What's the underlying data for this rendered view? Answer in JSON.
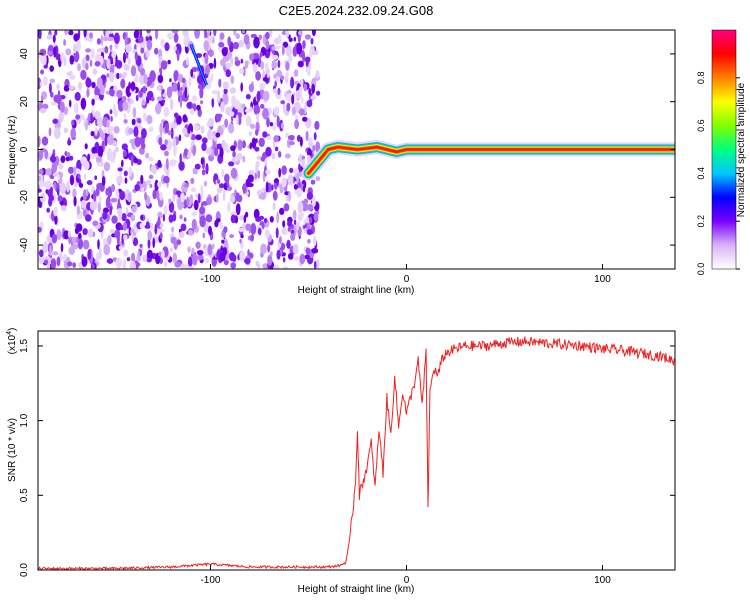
{
  "title": "C2E5.2024.232.09.24.G08",
  "chart_data": [
    {
      "type": "heatmap",
      "xlabel": "Height of straight line (km)",
      "ylabel": "Frequency (Hz)",
      "xlim": [
        -188,
        137
      ],
      "ylim": [
        -50,
        50
      ],
      "x_ticks": [
        -100,
        0,
        100
      ],
      "y_ticks": [
        -40,
        -20,
        0,
        20,
        40
      ],
      "colorbar": {
        "label": "Normalized spectral amplitude",
        "range": [
          0,
          1
        ],
        "ticks": [
          "0.0",
          "0.2",
          "0.4",
          "0.6",
          "0.8"
        ],
        "colors": [
          "#ffffff",
          "#d8b4f8",
          "#7a00ff",
          "#0000ff",
          "#00c8ff",
          "#00ff80",
          "#80ff00",
          "#ffff00",
          "#ff8000",
          "#ff0000",
          "#ff0080"
        ]
      },
      "noise_region_x": [
        -188,
        -45
      ],
      "signal_track": [
        {
          "x": -50,
          "y": -10
        },
        {
          "x": -45,
          "y": -5
        },
        {
          "x": -40,
          "y": 0
        },
        {
          "x": -35,
          "y": 1
        },
        {
          "x": -25,
          "y": 0
        },
        {
          "x": -15,
          "y": 1
        },
        {
          "x": -5,
          "y": -1
        },
        {
          "x": 0,
          "y": 0
        },
        {
          "x": 10,
          "y": 0
        },
        {
          "x": 137,
          "y": 0
        }
      ]
    },
    {
      "type": "line",
      "xlabel": "Height of straight line (km)",
      "ylabel": "SNR (10 * v/v)",
      "y_multiplier": "(x10",
      "y_multiplier_exp": "4",
      "y_multiplier_close": ")",
      "xlim": [
        -188,
        137
      ],
      "ylim": [
        0,
        1.6
      ],
      "x_ticks": [
        -100,
        0,
        100
      ],
      "y_ticks": [
        "0.0",
        "0.5",
        "1.0",
        "1.5"
      ],
      "color": "#ee2222",
      "series": [
        {
          "x": [
            -188,
            -150,
            -120,
            -100,
            -80,
            -60,
            -40,
            -34,
            -31,
            -29,
            -27,
            -26,
            -25,
            -24,
            -22,
            -20,
            -18,
            -16,
            -14,
            -12,
            -10,
            -8,
            -6,
            -4,
            -2,
            0,
            2,
            4,
            6,
            8,
            10,
            11,
            12,
            14,
            16,
            18,
            20,
            25,
            30,
            40,
            50,
            60,
            70,
            80,
            90,
            100,
            110,
            120,
            130,
            137
          ],
          "y": [
            0.01,
            0.01,
            0.02,
            0.04,
            0.02,
            0.02,
            0.02,
            0.03,
            0.05,
            0.2,
            0.45,
            0.6,
            0.95,
            0.5,
            0.6,
            0.7,
            0.85,
            0.55,
            0.95,
            0.65,
            1.15,
            0.9,
            1.3,
            0.95,
            1.2,
            1.05,
            1.15,
            1.25,
            1.4,
            1.1,
            1.45,
            0.42,
            1.2,
            1.35,
            1.3,
            1.4,
            1.45,
            1.48,
            1.5,
            1.5,
            1.52,
            1.53,
            1.52,
            1.51,
            1.5,
            1.48,
            1.47,
            1.45,
            1.43,
            1.4
          ]
        }
      ]
    }
  ]
}
